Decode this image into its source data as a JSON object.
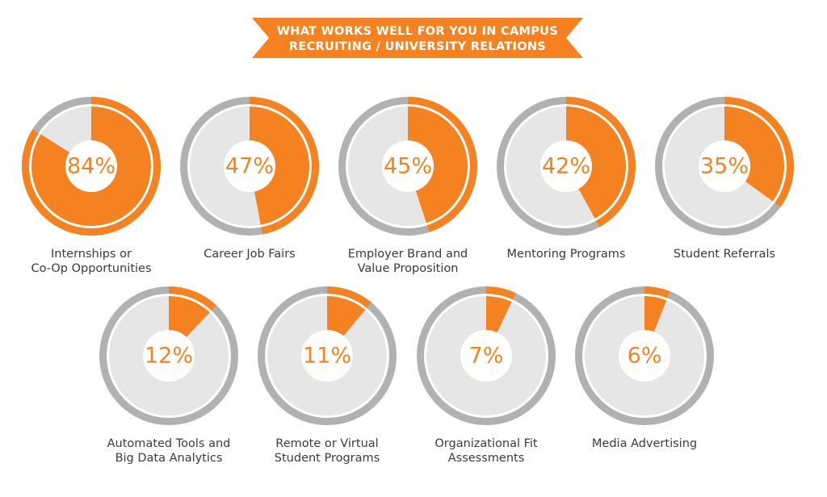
{
  "title": {
    "line1": "WHAT WORKS WELL FOR YOU IN CAMPUS",
    "line2": "RECRUITING / UNIVERSITY RELATIONS"
  },
  "colors": {
    "accent": "#f58220",
    "ring": "#b1b1b1",
    "fill": "#e6e6e6",
    "text": "#3a3a3a"
  },
  "chart_data": {
    "type": "pie",
    "categories": [
      "Internships or Co-Op Opportunities",
      "Career Job Fairs",
      "Employer Brand and Value Proposition",
      "Mentoring Programs",
      "Student Referrals",
      "Automated Tools and Big Data Analytics",
      "Remote or Virtual Student Programs",
      "Organizational Fit Assessments",
      "Media Advertising"
    ],
    "values": [
      84,
      47,
      45,
      42,
      35,
      12,
      11,
      7,
      6
    ],
    "value_labels": [
      "84%",
      "47%",
      "45%",
      "42%",
      "35%",
      "12%",
      "11%",
      "7%",
      "6%"
    ],
    "label_lines": [
      [
        "Internships or",
        "Co-Op Opportunities"
      ],
      [
        "Career Job Fairs"
      ],
      [
        "Employer Brand and",
        "Value Proposition"
      ],
      [
        "Mentoring Programs"
      ],
      [
        "Student Referrals"
      ],
      [
        "Automated Tools and",
        "Big Data Analytics"
      ],
      [
        "Remote or Virtual",
        "Student Programs"
      ],
      [
        "Organizational Fit",
        "Assessments"
      ],
      [
        "Media Advertising"
      ]
    ],
    "unit": "%",
    "ylim": [
      0,
      100
    ]
  }
}
